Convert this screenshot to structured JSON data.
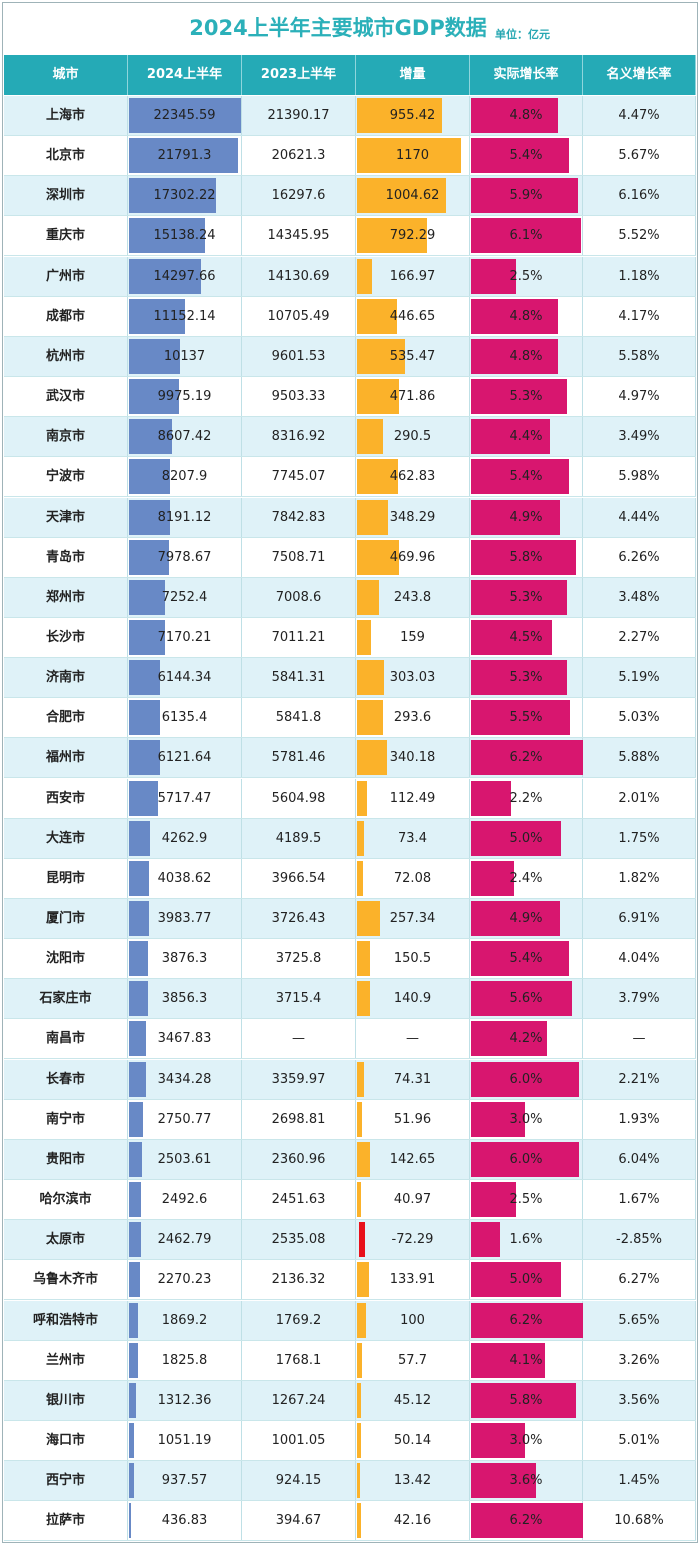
{
  "title": "2024上半年主要城市GDP数据",
  "unit": "单位：亿元",
  "colors": {
    "header": "#25aab6",
    "gdp_bar": "#6889c6",
    "inc_bar": "#fbb22a",
    "neg_bar": "#e8101a",
    "rate_bar": "#d8166f"
  },
  "columns": [
    "城市",
    "2024上半年",
    "2023上半年",
    "增量",
    "实际增长率",
    "名义增长率"
  ],
  "chart_data": {
    "type": "table",
    "columns": [
      "城市",
      "2024上半年",
      "2023上半年",
      "增量",
      "实际增长率",
      "名义增长率"
    ],
    "rows": [
      [
        "上海市",
        "22345.59",
        "21390.17",
        "955.42",
        "4.8%",
        "4.47%"
      ],
      [
        "北京市",
        "21791.3",
        "20621.3",
        "1170",
        "5.4%",
        "5.67%"
      ],
      [
        "深圳市",
        "17302.22",
        "16297.6",
        "1004.62",
        "5.9%",
        "6.16%"
      ],
      [
        "重庆市",
        "15138.24",
        "14345.95",
        "792.29",
        "6.1%",
        "5.52%"
      ],
      [
        "广州市",
        "14297.66",
        "14130.69",
        "166.97",
        "2.5%",
        "1.18%"
      ],
      [
        "成都市",
        "11152.14",
        "10705.49",
        "446.65",
        "4.8%",
        "4.17%"
      ],
      [
        "杭州市",
        "10137",
        "9601.53",
        "535.47",
        "4.8%",
        "5.58%"
      ],
      [
        "武汉市",
        "9975.19",
        "9503.33",
        "471.86",
        "5.3%",
        "4.97%"
      ],
      [
        "南京市",
        "8607.42",
        "8316.92",
        "290.5",
        "4.4%",
        "3.49%"
      ],
      [
        "宁波市",
        "8207.9",
        "7745.07",
        "462.83",
        "5.4%",
        "5.98%"
      ],
      [
        "天津市",
        "8191.12",
        "7842.83",
        "348.29",
        "4.9%",
        "4.44%"
      ],
      [
        "青岛市",
        "7978.67",
        "7508.71",
        "469.96",
        "5.8%",
        "6.26%"
      ],
      [
        "郑州市",
        "7252.4",
        "7008.6",
        "243.8",
        "5.3%",
        "3.48%"
      ],
      [
        "长沙市",
        "7170.21",
        "7011.21",
        "159",
        "4.5%",
        "2.27%"
      ],
      [
        "济南市",
        "6144.34",
        "5841.31",
        "303.03",
        "5.3%",
        "5.19%"
      ],
      [
        "合肥市",
        "6135.4",
        "5841.8",
        "293.6",
        "5.5%",
        "5.03%"
      ],
      [
        "福州市",
        "6121.64",
        "5781.46",
        "340.18",
        "6.2%",
        "5.88%"
      ],
      [
        "西安市",
        "5717.47",
        "5604.98",
        "112.49",
        "2.2%",
        "2.01%"
      ],
      [
        "大连市",
        "4262.9",
        "4189.5",
        "73.4",
        "5.0%",
        "1.75%"
      ],
      [
        "昆明市",
        "4038.62",
        "3966.54",
        "72.08",
        "2.4%",
        "1.82%"
      ],
      [
        "厦门市",
        "3983.77",
        "3726.43",
        "257.34",
        "4.9%",
        "6.91%"
      ],
      [
        "沈阳市",
        "3876.3",
        "3725.8",
        "150.5",
        "5.4%",
        "4.04%"
      ],
      [
        "石家庄市",
        "3856.3",
        "3715.4",
        "140.9",
        "5.6%",
        "3.79%"
      ],
      [
        "南昌市",
        "3467.83",
        "—",
        "—",
        "4.2%",
        "—"
      ],
      [
        "长春市",
        "3434.28",
        "3359.97",
        "74.31",
        "6.0%",
        "2.21%"
      ],
      [
        "南宁市",
        "2750.77",
        "2698.81",
        "51.96",
        "3.0%",
        "1.93%"
      ],
      [
        "贵阳市",
        "2503.61",
        "2360.96",
        "142.65",
        "6.0%",
        "6.04%"
      ],
      [
        "哈尔滨市",
        "2492.6",
        "2451.63",
        "40.97",
        "2.5%",
        "1.67%"
      ],
      [
        "太原市",
        "2462.79",
        "2535.08",
        "-72.29",
        "1.6%",
        "-2.85%"
      ],
      [
        "乌鲁木齐市",
        "2270.23",
        "2136.32",
        "133.91",
        "5.0%",
        "6.27%"
      ],
      [
        "呼和浩特市",
        "1869.2",
        "1769.2",
        "100",
        "6.2%",
        "5.65%"
      ],
      [
        "兰州市",
        "1825.8",
        "1768.1",
        "57.7",
        "4.1%",
        "3.26%"
      ],
      [
        "银川市",
        "1312.36",
        "1267.24",
        "45.12",
        "5.8%",
        "3.56%"
      ],
      [
        "海口市",
        "1051.19",
        "1001.05",
        "50.14",
        "3.0%",
        "5.01%"
      ],
      [
        "西宁市",
        "937.57",
        "924.15",
        "13.42",
        "3.6%",
        "1.45%"
      ],
      [
        "拉萨市",
        "436.83",
        "394.67",
        "42.16",
        "6.2%",
        "10.68%"
      ]
    ]
  }
}
